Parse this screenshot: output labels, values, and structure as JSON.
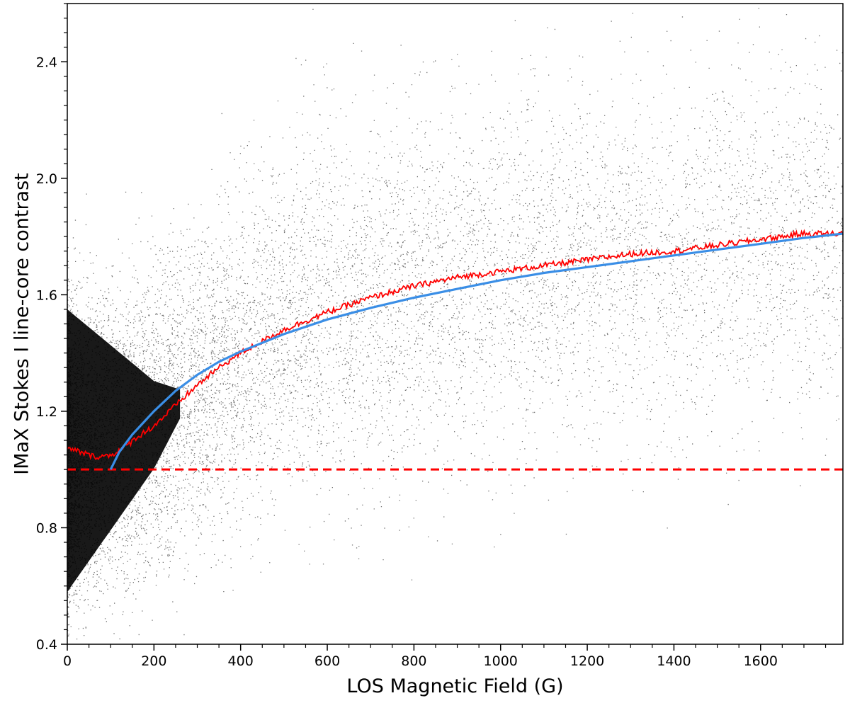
{
  "chart_data": {
    "type": "scatter",
    "title": "",
    "xlabel": "LOS Magnetic Field (G)",
    "ylabel": "IMaX Stokes I line-core contrast",
    "xlim": [
      0,
      1790
    ],
    "ylim": [
      0.4,
      2.6
    ],
    "x_ticks": [
      0,
      200,
      400,
      600,
      800,
      1000,
      1200,
      1400,
      1600
    ],
    "y_ticks": [
      0.4,
      0.8,
      1.2,
      1.6,
      2.0,
      2.4
    ],
    "x_tick_labels": [
      "0",
      "200",
      "400",
      "600",
      "800",
      "1000",
      "1200",
      "1400",
      "1600"
    ],
    "y_tick_labels": [
      "0.4",
      "0.8",
      "1.2",
      "1.6",
      "2.0",
      "2.4"
    ],
    "grid": false,
    "legend": "none",
    "series": [
      {
        "kind": "scatter-density",
        "color": "#000000",
        "description_points": [
          [
            0,
            1.05
          ],
          [
            200,
            1.15
          ],
          [
            400,
            1.4
          ],
          [
            600,
            1.55
          ],
          [
            800,
            1.62
          ],
          [
            1000,
            1.66
          ],
          [
            1200,
            1.7
          ],
          [
            1400,
            1.73
          ],
          [
            1600,
            1.77
          ],
          [
            1790,
            1.8
          ]
        ]
      },
      {
        "kind": "binned-mean",
        "color": "#ff0000",
        "x": [
          0,
          20,
          40,
          60,
          80,
          100,
          120,
          140,
          160,
          180,
          200,
          250,
          300,
          350,
          400,
          450,
          500,
          600,
          700,
          800,
          900,
          1000,
          1100,
          1200,
          1300,
          1400,
          1500,
          1600,
          1700,
          1790
        ],
        "y": [
          1.07,
          1.065,
          1.055,
          1.045,
          1.045,
          1.05,
          1.065,
          1.085,
          1.11,
          1.13,
          1.15,
          1.22,
          1.29,
          1.35,
          1.4,
          1.44,
          1.48,
          1.54,
          1.59,
          1.63,
          1.66,
          1.68,
          1.7,
          1.72,
          1.74,
          1.75,
          1.77,
          1.79,
          1.81,
          1.81
        ]
      },
      {
        "kind": "fit",
        "color": "#3a8ee6",
        "x": [
          100,
          120,
          150,
          200,
          250,
          300,
          350,
          400,
          500,
          600,
          700,
          800,
          900,
          1000,
          1100,
          1200,
          1300,
          1400,
          1500,
          1600,
          1700,
          1790
        ],
        "y": [
          1.0,
          1.06,
          1.12,
          1.2,
          1.27,
          1.325,
          1.37,
          1.405,
          1.465,
          1.515,
          1.555,
          1.59,
          1.62,
          1.65,
          1.675,
          1.695,
          1.715,
          1.735,
          1.755,
          1.775,
          1.795,
          1.81
        ]
      },
      {
        "kind": "reference",
        "color": "#ff0000",
        "line_style": "dashed",
        "y": 1.0
      }
    ]
  }
}
